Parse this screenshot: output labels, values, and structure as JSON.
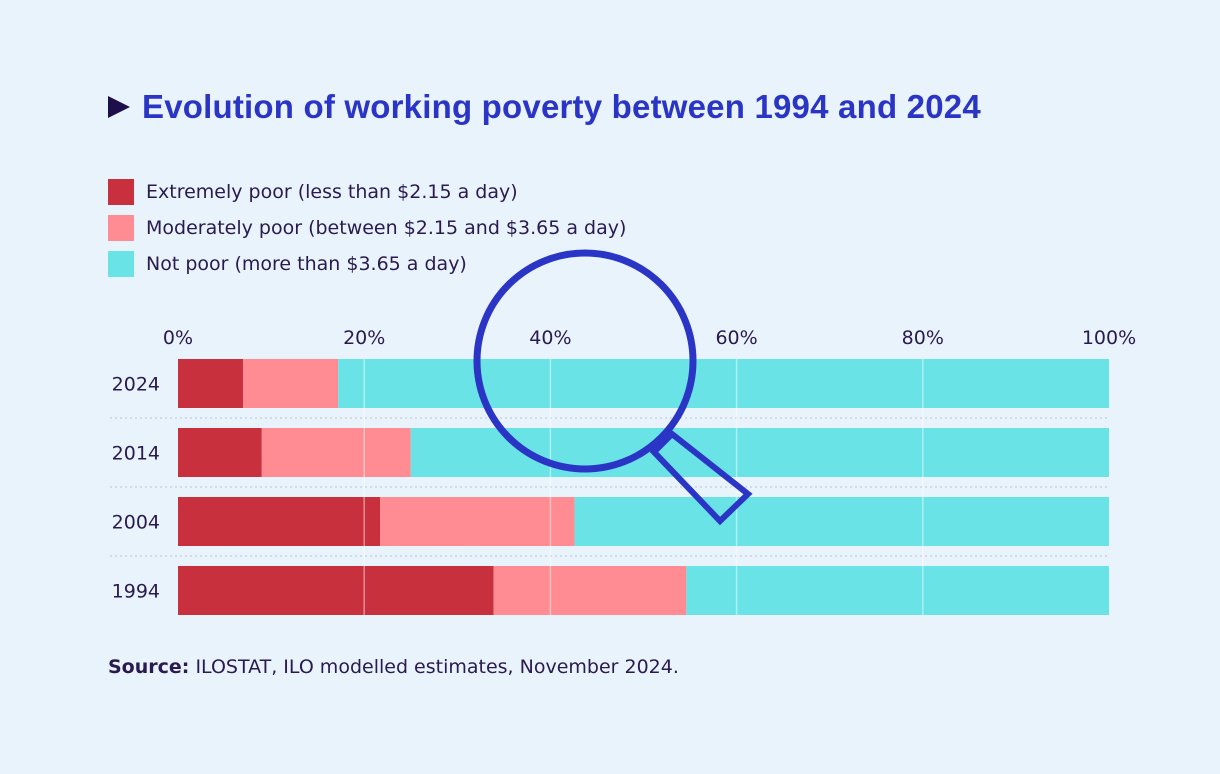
{
  "title": "Evolution of working poverty between 1994 and 2024",
  "source": {
    "label": "Source:",
    "text": "ILOSTAT, ILO modelled estimates, November 2024."
  },
  "colors": {
    "extreme": "#c8303d",
    "moderate": "#ff8c92",
    "notpoor": "#69e3e6",
    "title": "#2a35c6",
    "magnifier": "#2a35c6"
  },
  "chart_data": {
    "type": "bar",
    "orientation": "horizontal",
    "stacked": true,
    "categories": [
      "2024",
      "2014",
      "2004",
      "1994"
    ],
    "series": [
      {
        "name": "Extremely poor (less than $2.15 a day)",
        "values": [
          7.0,
          9.0,
          21.7,
          33.9
        ]
      },
      {
        "name": "Moderately poor (between $2.15 and $3.65 a day)",
        "values": [
          10.2,
          16.0,
          20.9,
          20.7
        ]
      },
      {
        "name": "Not poor (more than $3.65 a day)",
        "values": [
          82.8,
          75.0,
          57.4,
          45.4
        ]
      }
    ],
    "xlim": [
      0,
      100
    ],
    "xticks": [
      "0%",
      "20%",
      "40%",
      "60%",
      "80%",
      "100%"
    ],
    "xtick_values": [
      0,
      20,
      40,
      60,
      80,
      100
    ],
    "legend_position": "top-left",
    "grid": true
  }
}
